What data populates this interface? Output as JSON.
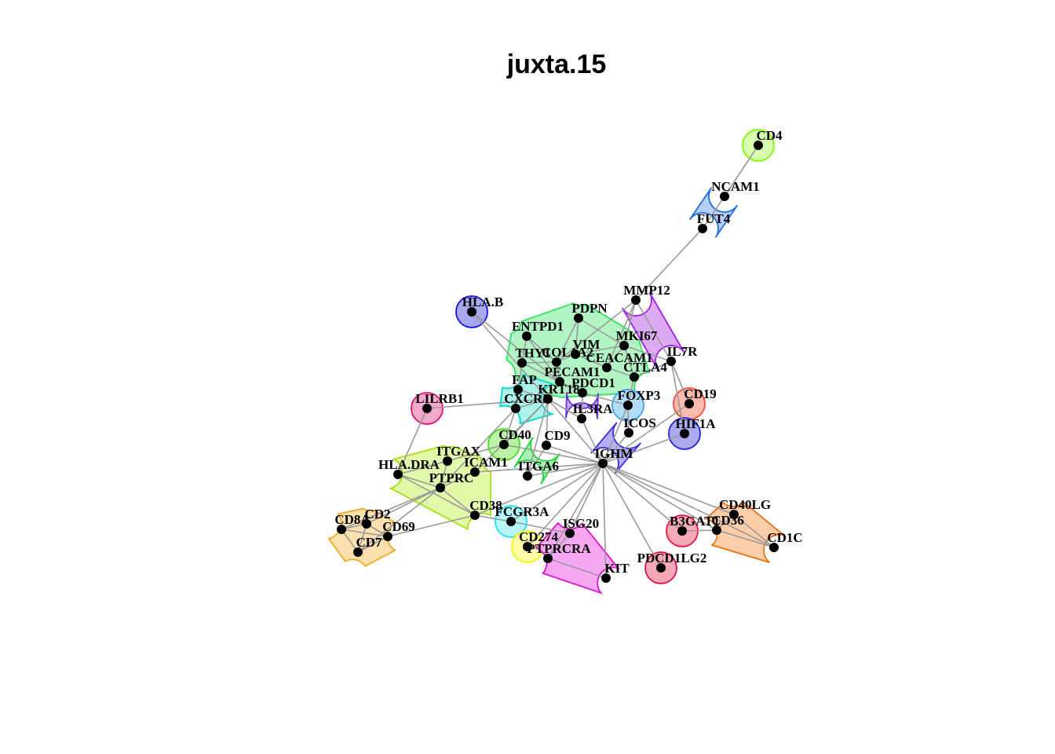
{
  "title": "juxta.15",
  "nodes": [
    {
      "id": "CD4",
      "label": "CD4"
    },
    {
      "id": "NCAM1",
      "label": "NCAM1"
    },
    {
      "id": "FUT4",
      "label": "FUT4"
    },
    {
      "id": "MMP12",
      "label": "MMP12"
    },
    {
      "id": "HLA.B",
      "label": "HLA.B"
    },
    {
      "id": "PDPN",
      "label": "PDPN"
    },
    {
      "id": "ENTPD1",
      "label": "ENTPD1"
    },
    {
      "id": "MKI67",
      "label": "MKI67"
    },
    {
      "id": "IL7R",
      "label": "IL7R"
    },
    {
      "id": "THY1",
      "label": "THY1"
    },
    {
      "id": "COL1A2",
      "label": "COL1A2"
    },
    {
      "id": "VIM",
      "label": "VIM"
    },
    {
      "id": "CEACAM1",
      "label": "CEACAM1"
    },
    {
      "id": "CTLA4",
      "label": "CTLA4"
    },
    {
      "id": "PECAM1",
      "label": "PECAM1"
    },
    {
      "id": "PDCD1",
      "label": "PDCD1"
    },
    {
      "id": "FAP",
      "label": "FAP"
    },
    {
      "id": "KRT18",
      "label": "KRT18"
    },
    {
      "id": "FOXP3",
      "label": "FOXP3"
    },
    {
      "id": "CD19",
      "label": "CD19"
    },
    {
      "id": "LILRB1",
      "label": "LILRB1"
    },
    {
      "id": "CXCR5",
      "label": "CXCR5"
    },
    {
      "id": "IL3RA",
      "label": "IL3RA"
    },
    {
      "id": "ICOS",
      "label": "ICOS"
    },
    {
      "id": "HIF1A",
      "label": "HIF1A"
    },
    {
      "id": "CD40",
      "label": "CD40"
    },
    {
      "id": "CD9",
      "label": "CD9"
    },
    {
      "id": "ITGAX",
      "label": "ITGAX"
    },
    {
      "id": "IGHM",
      "label": "IGHM"
    },
    {
      "id": "HLA.DRA",
      "label": "HLA.DRA"
    },
    {
      "id": "ICAM1",
      "label": "ICAM1"
    },
    {
      "id": "ITGA6",
      "label": "ITGA6"
    },
    {
      "id": "PTPRC",
      "label": "PTPRC"
    },
    {
      "id": "CD38",
      "label": "CD38"
    },
    {
      "id": "CD40LG",
      "label": "CD40LG"
    },
    {
      "id": "FCGR3A",
      "label": "FCGR3A"
    },
    {
      "id": "CD2",
      "label": "CD2"
    },
    {
      "id": "CD8A",
      "label": "CD8A"
    },
    {
      "id": "ISG20",
      "label": "ISG20"
    },
    {
      "id": "B3GAT1",
      "label": "B3GAT1"
    },
    {
      "id": "CD36",
      "label": "CD36"
    },
    {
      "id": "CD69",
      "label": "CD69"
    },
    {
      "id": "CD1C",
      "label": "CD1C"
    },
    {
      "id": "CD274",
      "label": "CD274"
    },
    {
      "id": "CD7",
      "label": "CD7"
    },
    {
      "id": "PTPRCRA",
      "label": "PTPRCRA"
    },
    {
      "id": "PDCD1LG2",
      "label": "PDCD1LG2"
    },
    {
      "id": "KIT",
      "label": "KIT"
    }
  ],
  "edges": [
    [
      "CD4",
      "NCAM1"
    ],
    [
      "NCAM1",
      "FUT4"
    ],
    [
      "FUT4",
      "MMP12"
    ],
    [
      "MMP12",
      "MKI67"
    ],
    [
      "MMP12",
      "IL7R"
    ],
    [
      "MMP12",
      "CEACAM1"
    ],
    [
      "MMP12",
      "COL1A2"
    ],
    [
      "PDPN",
      "MKI67"
    ],
    [
      "PDPN",
      "VIM"
    ],
    [
      "PDPN",
      "COL1A2"
    ],
    [
      "ENTPD1",
      "COL1A2"
    ],
    [
      "ENTPD1",
      "THY1"
    ],
    [
      "ENTPD1",
      "PECAM1"
    ],
    [
      "HLA.B",
      "PECAM1"
    ],
    [
      "HLA.B",
      "KRT18"
    ],
    [
      "THY1",
      "COL1A2"
    ],
    [
      "THY1",
      "FAP"
    ],
    [
      "THY1",
      "PECAM1"
    ],
    [
      "COL1A2",
      "VIM"
    ],
    [
      "COL1A2",
      "PECAM1"
    ],
    [
      "VIM",
      "CEACAM1"
    ],
    [
      "VIM",
      "MKI67"
    ],
    [
      "CEACAM1",
      "CTLA4"
    ],
    [
      "CEACAM1",
      "MKI67"
    ],
    [
      "CTLA4",
      "IL7R"
    ],
    [
      "CTLA4",
      "FOXP3"
    ],
    [
      "MKI67",
      "IL7R"
    ],
    [
      "MKI67",
      "CTLA4"
    ],
    [
      "PECAM1",
      "PDCD1"
    ],
    [
      "PECAM1",
      "KRT18"
    ],
    [
      "PDCD1",
      "FOXP3"
    ],
    [
      "PDCD1",
      "IL3RA"
    ],
    [
      "FAP",
      "CXCR5"
    ],
    [
      "FAP",
      "KRT18"
    ],
    [
      "KRT18",
      "CXCR5"
    ],
    [
      "KRT18",
      "IL3RA"
    ],
    [
      "FOXP3",
      "ICOS"
    ],
    [
      "FOXP3",
      "IGHM"
    ],
    [
      "IL7R",
      "CD19"
    ],
    [
      "IL7R",
      "HIF1A"
    ],
    [
      "LILRB1",
      "KRT18"
    ],
    [
      "LILRB1",
      "HLA.DRA"
    ],
    [
      "CXCR5",
      "CD40"
    ],
    [
      "CXCR5",
      "PTPRC"
    ],
    [
      "KRT18",
      "CD9"
    ],
    [
      "KRT18",
      "ITGA6"
    ],
    [
      "KRT18",
      "IGHM"
    ],
    [
      "KRT18",
      "CD40"
    ],
    [
      "KRT18",
      "ICAM1"
    ],
    [
      "IL3RA",
      "IGHM"
    ],
    [
      "ICOS",
      "IGHM"
    ],
    [
      "CD19",
      "IGHM"
    ],
    [
      "HIF1A",
      "IGHM"
    ],
    [
      "CD40",
      "ITGAX"
    ],
    [
      "CD40",
      "IGHM"
    ],
    [
      "CD9",
      "IGHM"
    ],
    [
      "CD9",
      "ITGA6"
    ],
    [
      "ITGA6",
      "IGHM"
    ],
    [
      "ITGAX",
      "HLA.DRA"
    ],
    [
      "ITGAX",
      "PTPRC"
    ],
    [
      "ICAM1",
      "PTPRC"
    ],
    [
      "ICAM1",
      "IGHM"
    ],
    [
      "HLA.DRA",
      "PTPRC"
    ],
    [
      "HLA.DRA",
      "CD38"
    ],
    [
      "PTPRC",
      "CD38"
    ],
    [
      "PTPRC",
      "CD2"
    ],
    [
      "PTPRC",
      "CD8A"
    ],
    [
      "PTPRC",
      "CD7"
    ],
    [
      "CD38",
      "FCGR3A"
    ],
    [
      "CD38",
      "CD69"
    ],
    [
      "CD38",
      "IGHM"
    ],
    [
      "CD2",
      "CD8A"
    ],
    [
      "CD2",
      "CD69"
    ],
    [
      "CD8A",
      "CD69"
    ],
    [
      "CD8A",
      "CD7"
    ],
    [
      "CD7",
      "CD69"
    ],
    [
      "CD2",
      "CD7"
    ],
    [
      "FCGR3A",
      "IGHM"
    ],
    [
      "FCGR3A",
      "ISG20"
    ],
    [
      "ISG20",
      "IGHM"
    ],
    [
      "ISG20",
      "PTPRCRA"
    ],
    [
      "CD274",
      "IGHM"
    ],
    [
      "PTPRCRA",
      "IGHM"
    ],
    [
      "PTPRCRA",
      "KIT"
    ],
    [
      "KIT",
      "IGHM"
    ],
    [
      "PDCD1LG2",
      "IGHM"
    ],
    [
      "B3GAT1",
      "IGHM"
    ],
    [
      "CD36",
      "IGHM"
    ],
    [
      "CD1C",
      "IGHM"
    ],
    [
      "CD40LG",
      "IGHM"
    ],
    [
      "B3GAT1",
      "CD36"
    ],
    [
      "CD36",
      "CD40LG"
    ],
    [
      "CD36",
      "CD1C"
    ],
    [
      "CD40LG",
      "CD1C"
    ]
  ],
  "clusters": [
    {
      "name": "c-cd4",
      "color": "#7cfc00",
      "fill": "#d8ffb0",
      "members": [
        "CD4"
      ]
    },
    {
      "name": "c-ncam",
      "color": "#1e6fe6",
      "fill": "#b8cdf7",
      "members": [
        "NCAM1",
        "FUT4"
      ]
    },
    {
      "name": "c-mmp",
      "color": "#a020f0",
      "fill": "#dcaaf5",
      "members": [
        "MMP12",
        "IL7R"
      ]
    },
    {
      "name": "c-hlab",
      "color": "#1010e0",
      "fill": "#a8a8ef",
      "members": [
        "HLA.B"
      ]
    },
    {
      "name": "c-stromal",
      "color": "#2ee65a",
      "fill": "#b2f5c4",
      "members": [
        "PDPN",
        "ENTPD1",
        "MKI67",
        "THY1",
        "COL1A2",
        "VIM",
        "CEACAM1",
        "CTLA4",
        "PECAM1"
      ]
    },
    {
      "name": "c-cxcr",
      "color": "#00d8c8",
      "fill": "#aaf2ea",
      "members": [
        "FAP",
        "CXCR5",
        "KRT18"
      ]
    },
    {
      "name": "c-il3",
      "color": "#6a2be0",
      "fill": "#c6b0f3",
      "members": [
        "PDCD1",
        "IL3RA"
      ]
    },
    {
      "name": "c-foxp",
      "color": "#3ba0ef",
      "fill": "#b4dcf7",
      "members": [
        "FOXP3"
      ]
    },
    {
      "name": "c-cd19",
      "color": "#f04a30",
      "fill": "#f8b9ae",
      "members": [
        "CD19"
      ]
    },
    {
      "name": "c-hif",
      "color": "#2020e0",
      "fill": "#aaaaf0",
      "members": [
        "HIF1A"
      ]
    },
    {
      "name": "c-ighm",
      "color": "#3a2be0",
      "fill": "#b4b0f3",
      "members": [
        "ICOS",
        "IGHM"
      ]
    },
    {
      "name": "c-lilrb",
      "color": "#e01070",
      "fill": "#f3a8cc",
      "members": [
        "LILRB1"
      ]
    },
    {
      "name": "c-cd40",
      "color": "#44e01a",
      "fill": "#baf3a5",
      "members": [
        "CD40"
      ]
    },
    {
      "name": "c-itga6",
      "color": "#22d83a",
      "fill": "#aaf2b6",
      "members": [
        "CD9",
        "ITGA6"
      ]
    },
    {
      "name": "c-ptprc",
      "color": "#a5e010",
      "fill": "#e3f9aa",
      "members": [
        "ITGAX",
        "HLA.DRA",
        "ICAM1",
        "PTPRC",
        "CD38"
      ]
    },
    {
      "name": "c-cd8",
      "color": "#f3a820",
      "fill": "#fde0b0",
      "members": [
        "CD2",
        "CD8A",
        "CD69",
        "CD7"
      ]
    },
    {
      "name": "c-fcgr",
      "color": "#20e0ee",
      "fill": "#b6f6fb",
      "members": [
        "FCGR3A"
      ]
    },
    {
      "name": "c-cd274",
      "color": "#f4f40a",
      "fill": "#fdfda8",
      "members": [
        "CD274"
      ]
    },
    {
      "name": "c-isg",
      "color": "#e010d0",
      "fill": "#f6a8f0",
      "members": [
        "ISG20",
        "PTPRCRA",
        "KIT"
      ]
    },
    {
      "name": "c-b3g",
      "color": "#f01040",
      "fill": "#f8a8b6",
      "members": [
        "B3GAT1"
      ]
    },
    {
      "name": "c-pdl2",
      "color": "#e01048",
      "fill": "#f6a8b8",
      "members": [
        "PDCD1LG2"
      ]
    },
    {
      "name": "c-cd36",
      "color": "#f07010",
      "fill": "#fbcda8",
      "members": [
        "CD40LG",
        "CD36",
        "CD1C"
      ]
    }
  ]
}
